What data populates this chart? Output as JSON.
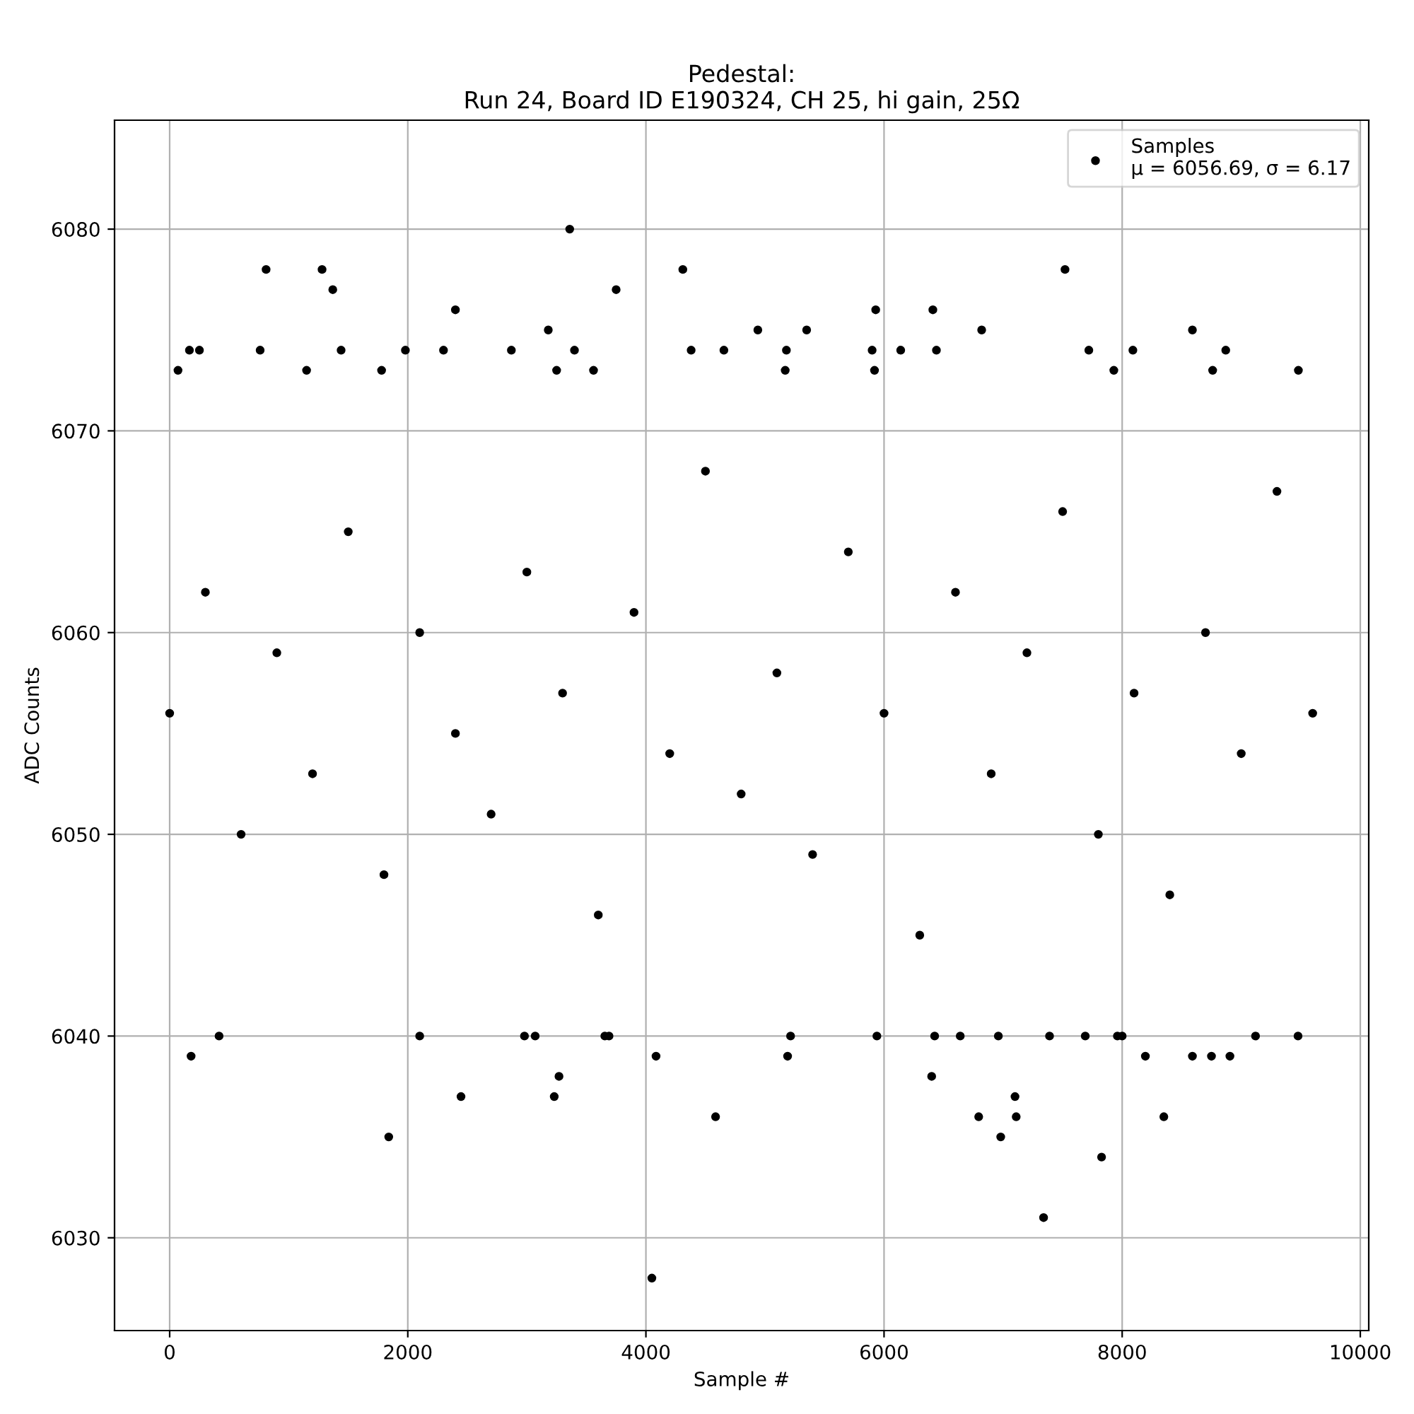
{
  "chart_data": {
    "type": "scatter",
    "title": "Pedestal:\nRun 24, Board ID E190324, CH 25, hi gain, 25Ω",
    "xlabel": "Sample #",
    "ylabel": "ADC Counts",
    "series": [
      {
        "name": "Samples\nμ = 6056.69, σ = 6.17",
        "color": "#000000",
        "x": [
          4050,
          7340,
          7827,
          1840,
          6980,
          2447,
          3230,
          3270,
          4585,
          6400,
          6795,
          7100,
          7110,
          8350,
          180,
          4085,
          5190,
          8195,
          8590,
          8750,
          8905,
          415,
          2100,
          2980,
          3070,
          3655,
          3690,
          5215,
          5940,
          6425,
          6640,
          6960,
          7390,
          7690,
          7960,
          8000,
          9120,
          9477,
          3360,
          810,
          1280,
          4310,
          7520,
          1370,
          3750,
          2400,
          5930,
          6410,
          3180,
          4940,
          5350,
          6820,
          8590,
          166,
          250,
          760,
          1440,
          1980,
          2300,
          2870,
          3400,
          4380,
          4655,
          5180,
          5900,
          6140,
          6440,
          7720,
          8090,
          8870,
          70,
          1150,
          1780,
          3250,
          3560,
          5170,
          5920,
          7930,
          8760,
          9480,
          0,
          300,
          600,
          900,
          1200,
          1500,
          1800,
          2100,
          2400,
          2700,
          3000,
          3300,
          3600,
          3900,
          4200,
          4500,
          4800,
          5100,
          5400,
          5700,
          6000,
          6300,
          6600,
          6900,
          7200,
          7500,
          7800,
          8100,
          8400,
          8700,
          9000,
          9300,
          9600
        ],
        "values": [
          6028,
          6031,
          6034,
          6035,
          6035,
          6037,
          6037,
          6038,
          6036,
          6038,
          6036,
          6037,
          6036,
          6036,
          6039,
          6039,
          6039,
          6039,
          6039,
          6039,
          6039,
          6040,
          6040,
          6040,
          6040,
          6040,
          6040,
          6040,
          6040,
          6040,
          6040,
          6040,
          6040,
          6040,
          6040,
          6040,
          6040,
          6040,
          6080,
          6078,
          6078,
          6078,
          6078,
          6077,
          6077,
          6076,
          6076,
          6076,
          6075,
          6075,
          6075,
          6075,
          6075,
          6074,
          6074,
          6074,
          6074,
          6074,
          6074,
          6074,
          6074,
          6074,
          6074,
          6074,
          6074,
          6074,
          6074,
          6074,
          6074,
          6074,
          6073,
          6073,
          6073,
          6073,
          6073,
          6073,
          6073,
          6073,
          6073,
          6073,
          6056,
          6062,
          6050,
          6059,
          6053,
          6065,
          6048,
          6060,
          6055,
          6051,
          6063,
          6057,
          6046,
          6061,
          6054,
          6068,
          6052,
          6058,
          6049,
          6064,
          6056,
          6045,
          6062,
          6053,
          6059,
          6066,
          6050,
          6057,
          6047,
          6060,
          6054,
          6067,
          6056
        ]
      }
    ],
    "xlim": [
      -463,
      10071
    ],
    "ylim": [
      6025.4,
      6085.4
    ],
    "xticks": [
      0,
      2000,
      4000,
      6000,
      8000,
      10000
    ],
    "yticks": [
      6030,
      6040,
      6050,
      6060,
      6070,
      6080
    ],
    "grid": true,
    "legend": "top right",
    "marker": "circle"
  }
}
